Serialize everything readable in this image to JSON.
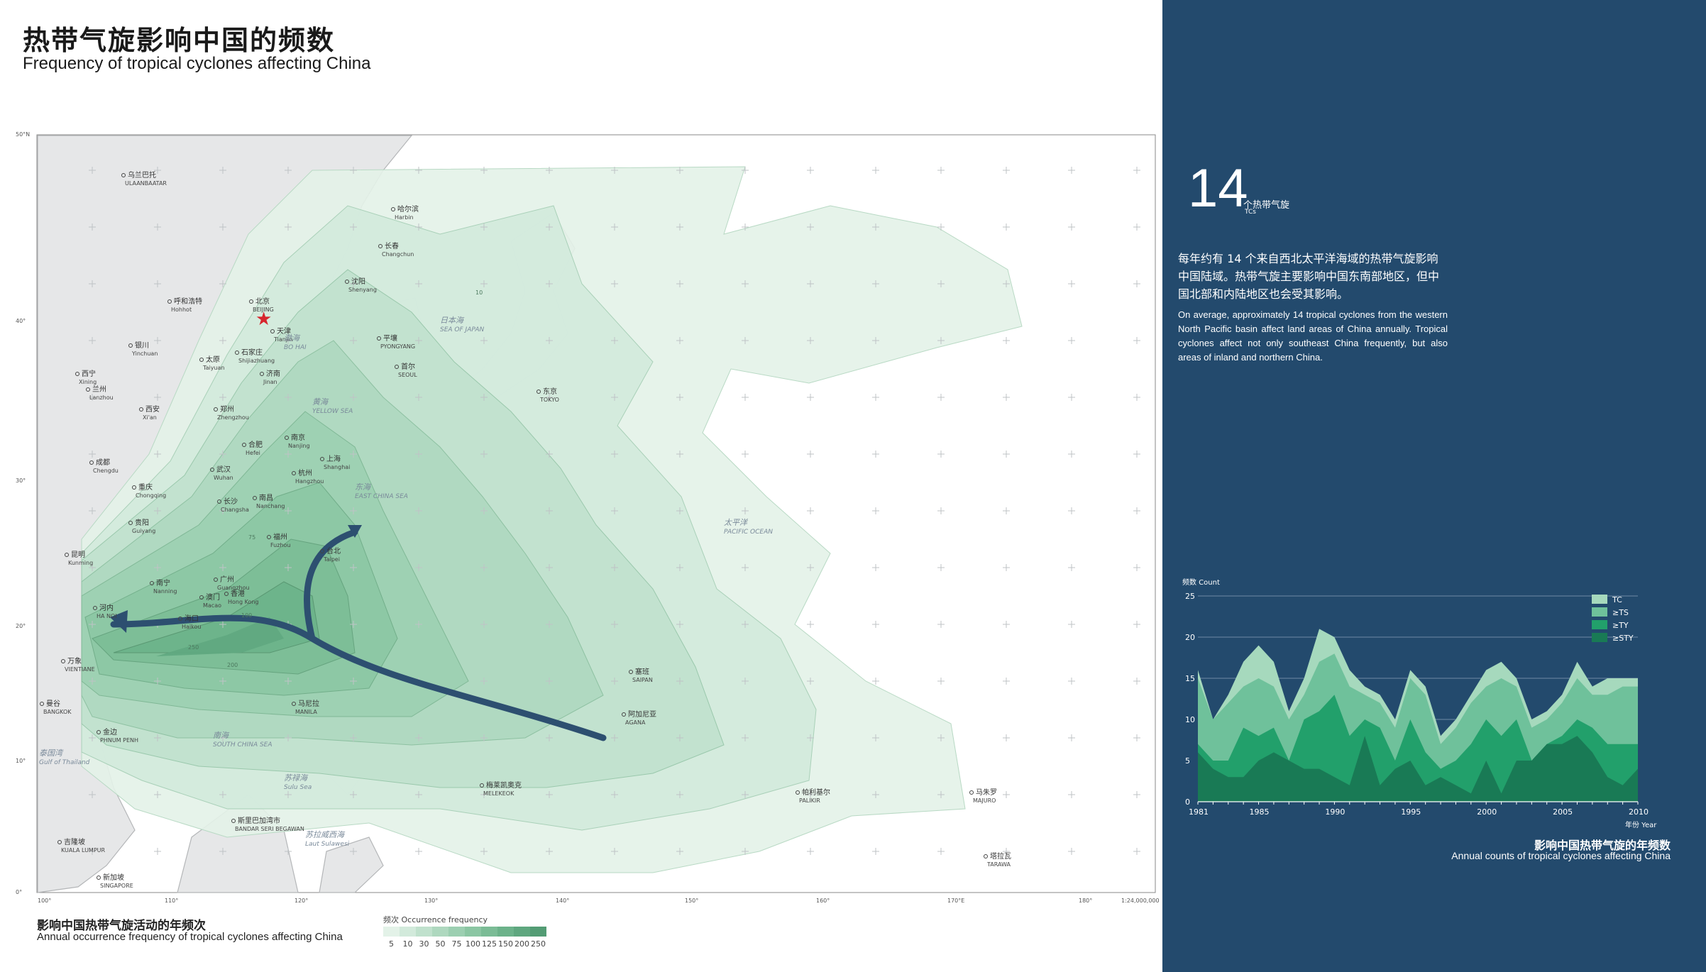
{
  "header": {
    "title_cn": "热带气旋影响中国的频数",
    "title_en": "Frequency of tropical cyclones affecting China"
  },
  "map": {
    "scale": "1:24,000,000",
    "lat_labels": [
      "50°N",
      "40°",
      "30°",
      "20°",
      "10°",
      "0°"
    ],
    "lon_labels": [
      "100°",
      "110°",
      "120°",
      "130°",
      "140°",
      "150°",
      "160°",
      "170°E",
      "180°"
    ],
    "cities": [
      {
        "cn": "乌兰巴托",
        "en": "ULAANBAATAR"
      },
      {
        "cn": "哈尔滨",
        "en": "Harbin"
      },
      {
        "cn": "长春",
        "en": "Changchun"
      },
      {
        "cn": "沈阳",
        "en": "Shenyang"
      },
      {
        "cn": "呼和浩特",
        "en": "Hohhot"
      },
      {
        "cn": "北京",
        "en": "BEIJING"
      },
      {
        "cn": "天津",
        "en": "Tianjin"
      },
      {
        "cn": "石家庄",
        "en": "Shijiazhuang"
      },
      {
        "cn": "银川",
        "en": "Yinchuan"
      },
      {
        "cn": "太原",
        "en": "Taiyuan"
      },
      {
        "cn": "济南",
        "en": "Jinan"
      },
      {
        "cn": "西宁",
        "en": "Xining"
      },
      {
        "cn": "兰州",
        "en": "Lanzhou"
      },
      {
        "cn": "西安",
        "en": "Xi'an"
      },
      {
        "cn": "郑州",
        "en": "Zhengzhou"
      },
      {
        "cn": "平壤",
        "en": "PYONGYANG"
      },
      {
        "cn": "首尔",
        "en": "SEOUL"
      },
      {
        "cn": "东京",
        "en": "TOKYO"
      },
      {
        "cn": "南京",
        "en": "Nanjing"
      },
      {
        "cn": "合肥",
        "en": "Hefei"
      },
      {
        "cn": "上海",
        "en": "Shanghai"
      },
      {
        "cn": "成都",
        "en": "Chengdu"
      },
      {
        "cn": "武汉",
        "en": "Wuhan"
      },
      {
        "cn": "杭州",
        "en": "Hangzhou"
      },
      {
        "cn": "重庆",
        "en": "Chongqing"
      },
      {
        "cn": "长沙",
        "en": "Changsha"
      },
      {
        "cn": "南昌",
        "en": "Nanchang"
      },
      {
        "cn": "贵阳",
        "en": "Guiyang"
      },
      {
        "cn": "福州",
        "en": "Fuzhou"
      },
      {
        "cn": "台北",
        "en": "Taipei"
      },
      {
        "cn": "昆明",
        "en": "Kunming"
      },
      {
        "cn": "南宁",
        "en": "Nanning"
      },
      {
        "cn": "广州",
        "en": "Guangzhou"
      },
      {
        "cn": "香港",
        "en": "Hong Kong"
      },
      {
        "cn": "澳门",
        "en": "Macao"
      },
      {
        "cn": "河内",
        "en": "HA NOI"
      },
      {
        "cn": "海口",
        "en": "Haikou"
      },
      {
        "cn": "万象",
        "en": "VIENTIANE"
      },
      {
        "cn": "曼谷",
        "en": "BANGKOK"
      },
      {
        "cn": "金边",
        "en": "PHNUM PENH"
      },
      {
        "cn": "马尼拉",
        "en": "MANILA"
      },
      {
        "cn": "塞班",
        "en": "SAIPAN"
      },
      {
        "cn": "阿加尼亚",
        "en": "AGANA"
      },
      {
        "cn": "梅莱凯奥克",
        "en": "MELEKEOK"
      },
      {
        "cn": "帕利基尔",
        "en": "PALIKIR"
      },
      {
        "cn": "马朱罗",
        "en": "MAJURO"
      },
      {
        "cn": "塔拉瓦",
        "en": "TARAWA"
      },
      {
        "cn": "斯里巴加湾市",
        "en": "BANDAR SERI BEGAWAN"
      },
      {
        "cn": "吉隆坡",
        "en": "KUALA LUMPUR"
      },
      {
        "cn": "新加坡",
        "en": "SINGAPORE"
      }
    ],
    "seas": [
      {
        "cn": "渤海",
        "en": "BO HAI"
      },
      {
        "cn": "日本海",
        "en": "SEA OF JAPAN"
      },
      {
        "cn": "黄海",
        "en": "YELLOW SEA"
      },
      {
        "cn": "东海",
        "en": "EAST CHINA SEA"
      },
      {
        "cn": "太平洋",
        "en": "PACIFIC OCEAN"
      },
      {
        "cn": "南海",
        "en": "SOUTH CHINA SEA"
      },
      {
        "cn": "泰国湾",
        "en": "Gulf of Thailand"
      },
      {
        "cn": "苏禄海",
        "en": "Sulu Sea"
      },
      {
        "cn": "苏拉威西海",
        "en": "Laut Sulawesi"
      }
    ],
    "contour_labels": [
      "10",
      "75",
      "100",
      "200",
      "250"
    ],
    "legend": {
      "title_cn": "影响中国热带气旋活动的年频次",
      "title_en": "Annual occurrence frequency of tropical cyclones affecting China",
      "label": "频次 Occurrence frequency",
      "values": [
        "5",
        "10",
        "30",
        "50",
        "75",
        "100",
        "125",
        "150",
        "200",
        "250"
      ],
      "colors": [
        "#e3f2e8",
        "#d2eadb",
        "#c0e1cd",
        "#aed8bf",
        "#9ccfb1",
        "#8bc6a3",
        "#7bbc96",
        "#6cb28a",
        "#5fa77f",
        "#539c74"
      ]
    },
    "colors": {
      "land": "#e6e7e8",
      "ocean": "#ffffff",
      "track": "#2d4f70"
    }
  },
  "sidebar": {
    "big_number": "14",
    "unit_cn": "个热带气旋",
    "unit_en": "TCs",
    "text_cn": "每年约有 14 个来自西北太平洋海域的热带气旋影响中国陆域。热带气旋主要影响中国东南部地区，但中国北部和内陆地区也会受其影响。",
    "text_en": "On average, approximately 14 tropical cyclones from the western North Pacific basin affect land areas of China annually. Tropical cyclones affect not only southeast China frequently, but also areas of inland and northern China.",
    "background": "#234a6d"
  },
  "chart_data": {
    "type": "area",
    "title": "影响中国热带气旋的年频数",
    "subtitle": "Annual counts of tropical cyclones affecting China",
    "ylabel": "频数 Count",
    "xlabel": "年份 Year",
    "ylim": [
      0,
      25
    ],
    "yticks": [
      0,
      5,
      10,
      15,
      20,
      25
    ],
    "xticks": [
      1981,
      1985,
      1990,
      1995,
      2000,
      2005,
      2010
    ],
    "x": [
      1981,
      1982,
      1983,
      1984,
      1985,
      1986,
      1987,
      1988,
      1989,
      1990,
      1991,
      1992,
      1993,
      1994,
      1995,
      1996,
      1997,
      1998,
      1999,
      2000,
      2001,
      2002,
      2003,
      2004,
      2005,
      2006,
      2007,
      2008,
      2009,
      2010
    ],
    "series": [
      {
        "name": "TC",
        "color": "#a6d9bd",
        "values": [
          16,
          10,
          13,
          17,
          19,
          17,
          11,
          15,
          21,
          20,
          16,
          14,
          13,
          10,
          16,
          14,
          8,
          10,
          13,
          16,
          17,
          15,
          10,
          11,
          13,
          17,
          14,
          15,
          15,
          15
        ]
      },
      {
        "name": "≥TS",
        "color": "#6fc19b",
        "values": [
          15,
          10,
          12,
          14,
          15,
          14,
          10,
          13,
          17,
          18,
          14,
          13,
          12,
          9,
          15,
          13,
          7,
          9,
          12,
          14,
          15,
          14,
          9,
          10,
          12,
          15,
          13,
          13,
          14,
          14
        ]
      },
      {
        "name": "≥TY",
        "color": "#22a06b",
        "values": [
          7,
          5,
          5,
          9,
          8,
          9,
          5,
          10,
          11,
          13,
          8,
          10,
          9,
          5,
          10,
          6,
          4,
          5,
          7,
          10,
          8,
          10,
          5,
          7,
          8,
          10,
          9,
          7,
          7,
          7
        ]
      },
      {
        "name": "≥STY",
        "color": "#197a55",
        "values": [
          6,
          4,
          3,
          3,
          5,
          6,
          5,
          4,
          4,
          3,
          2,
          8,
          2,
          4,
          5,
          2,
          3,
          2,
          1,
          5,
          1,
          5,
          5,
          7,
          7,
          8,
          6,
          3,
          2,
          4
        ]
      }
    ],
    "legend_position": "top-right",
    "grid": true
  }
}
